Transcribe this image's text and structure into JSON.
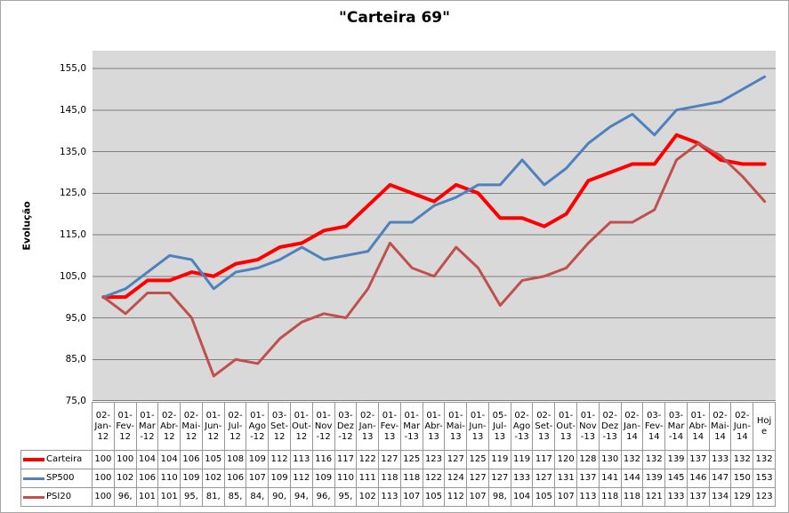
{
  "title": "\"Carteira 69\"",
  "y_axis": {
    "title": "Evolução",
    "tick_labels": [
      "155,0",
      "145,0",
      "135,0",
      "125,0",
      "115,0",
      "105,0",
      "95,0",
      "85,0",
      "75,0"
    ],
    "tick_values": [
      155,
      145,
      135,
      125,
      115,
      105,
      95,
      85,
      75
    ]
  },
  "chart_data": {
    "type": "line",
    "title": "\"Carteira 69\"",
    "xlabel": "",
    "ylabel": "Evolução",
    "ylim": [
      75,
      155
    ],
    "grid": true,
    "legend_position": "left-of-data-table",
    "plot_background": "#d9d9d9",
    "gridline_color": "#7f7f7f",
    "categories": [
      "02-Jan-12",
      "01-Fev-12",
      "01-Mar-12",
      "02-Abr-12",
      "02-Mai-12",
      "01-Jun-12",
      "02-Jul-12",
      "01-Ago-12",
      "03-Set-12",
      "01-Out-12",
      "01-Nov-12",
      "03-Dez-12",
      "02-Jan-13",
      "01-Fev-13",
      "01-Mar-13",
      "01-Abr-13",
      "01-Mai-13",
      "01-Jun-13",
      "05-Jul-13",
      "02-Ago-13",
      "02-Set-13",
      "01-Out-13",
      "01-Nov-13",
      "02-Dez-13",
      "02-Jan-14",
      "03-Fev-14",
      "03-Mar-14",
      "01-Abr-14",
      "02-Mai-14",
      "02-Jun-14",
      "Hoje"
    ],
    "series": [
      {
        "name": "Carteira",
        "color": "#ff0000",
        "line_width": 4,
        "values": [
          100,
          100,
          104,
          104,
          106,
          105,
          108,
          109,
          112,
          113,
          116,
          117,
          122,
          127,
          125,
          123,
          127,
          125,
          119,
          119,
          117,
          120,
          128,
          130,
          132,
          132,
          139,
          137,
          133,
          132,
          132
        ]
      },
      {
        "name": "SP500",
        "color": "#4f81bd",
        "line_width": 3,
        "values": [
          100,
          102,
          106,
          110,
          109,
          102,
          106,
          107,
          109,
          112,
          109,
          110,
          111,
          118,
          118,
          122,
          124,
          127,
          127,
          133,
          127,
          131,
          137,
          141,
          144,
          139,
          145,
          146,
          147,
          150,
          153
        ]
      },
      {
        "name": "PSI20",
        "color": "#c0504d",
        "line_width": 3,
        "values": [
          100,
          96,
          101,
          101,
          95,
          81,
          85,
          84,
          90,
          94,
          96,
          95,
          102,
          113,
          107,
          105,
          112,
          107,
          98,
          104,
          105,
          107,
          113,
          118,
          118,
          121,
          133,
          137,
          134,
          129,
          123
        ]
      }
    ]
  },
  "data_table": {
    "header": [
      "02-Jan-12",
      "01-Fev-12",
      "01-Mar-12",
      "02-Abr-12",
      "02-Mai-12",
      "01-Jun-12",
      "02-Jul-12",
      "01-Ago-12",
      "03-Set-12",
      "01-Out-12",
      "01-Nov-12",
      "03-Dez-12",
      "02-Jan-13",
      "01-Fev-13",
      "01-Mar-13",
      "01-Abr-13",
      "01-Mai-13",
      "01-Jun-13",
      "05-Jul-13",
      "02-Ago-13",
      "02-Set-13",
      "01-Out-13",
      "01-Nov-13",
      "02-Dez-13",
      "02-Jan-14",
      "03-Fev-14",
      "03-Mar-14",
      "01-Abr-14",
      "02-Mai-14",
      "02-Jun-14",
      "Hoje"
    ],
    "rows": [
      {
        "label": "Carteira",
        "cells": [
          "100",
          "100",
          "104",
          "104",
          "106",
          "105",
          "108",
          "109",
          "112",
          "113",
          "116",
          "117",
          "122",
          "127",
          "125",
          "123",
          "127",
          "125",
          "119",
          "119",
          "117",
          "120",
          "128",
          "130",
          "132",
          "132",
          "139",
          "137",
          "133",
          "132",
          "132"
        ]
      },
      {
        "label": "SP500",
        "cells": [
          "100",
          "102",
          "106",
          "110",
          "109",
          "102",
          "106",
          "107",
          "109",
          "112",
          "109",
          "110",
          "111",
          "118",
          "118",
          "122",
          "124",
          "127",
          "127",
          "133",
          "127",
          "131",
          "137",
          "141",
          "144",
          "139",
          "145",
          "146",
          "147",
          "150",
          "153"
        ]
      },
      {
        "label": "PSI20",
        "cells": [
          "100",
          "96,",
          "101",
          "101",
          "95,",
          "81,",
          "85,",
          "84,",
          "90,",
          "94,",
          "96,",
          "95,",
          "102",
          "113",
          "107",
          "105",
          "112",
          "107",
          "98,",
          "104",
          "105",
          "107",
          "113",
          "118",
          "118",
          "121",
          "133",
          "137",
          "134",
          "129",
          "123"
        ]
      }
    ]
  }
}
